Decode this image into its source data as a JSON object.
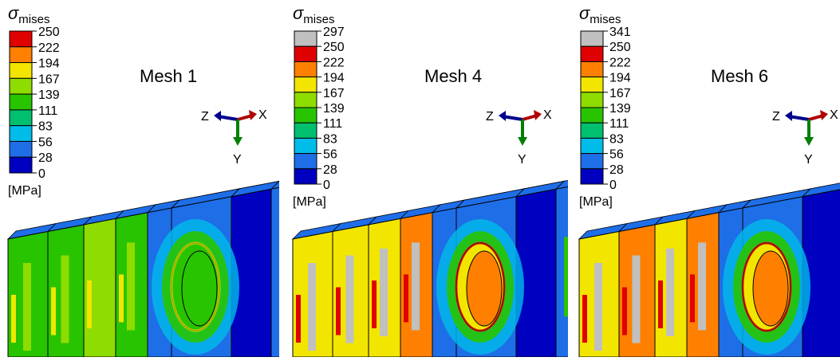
{
  "panels": [
    {
      "legend_title": {
        "symbol": "σ",
        "subscript": "mises"
      },
      "legend_labels": [
        "250",
        "222",
        "194",
        "167",
        "139",
        "111",
        "83",
        "56",
        "28",
        "0"
      ],
      "unit": "[MPa]",
      "mesh_label": "Mesh 1",
      "axes": {
        "z": "Z",
        "x": "X",
        "y": "Y"
      }
    },
    {
      "legend_title": {
        "symbol": "σ",
        "subscript": "mises"
      },
      "legend_labels": [
        "297",
        "250",
        "222",
        "194",
        "167",
        "139",
        "111",
        "83",
        "56",
        "28",
        "0"
      ],
      "unit": "[MPa]",
      "mesh_label": "Mesh 4",
      "axes": {
        "z": "Z",
        "x": "X",
        "y": "Y"
      }
    },
    {
      "legend_title": {
        "symbol": "σ",
        "subscript": "mises"
      },
      "legend_labels": [
        "341",
        "250",
        "222",
        "194",
        "167",
        "139",
        "111",
        "83",
        "56",
        "28",
        "0"
      ],
      "unit": "[MPa]",
      "mesh_label": "Mesh 6",
      "axes": {
        "z": "Z",
        "x": "X",
        "y": "Y"
      }
    }
  ]
}
